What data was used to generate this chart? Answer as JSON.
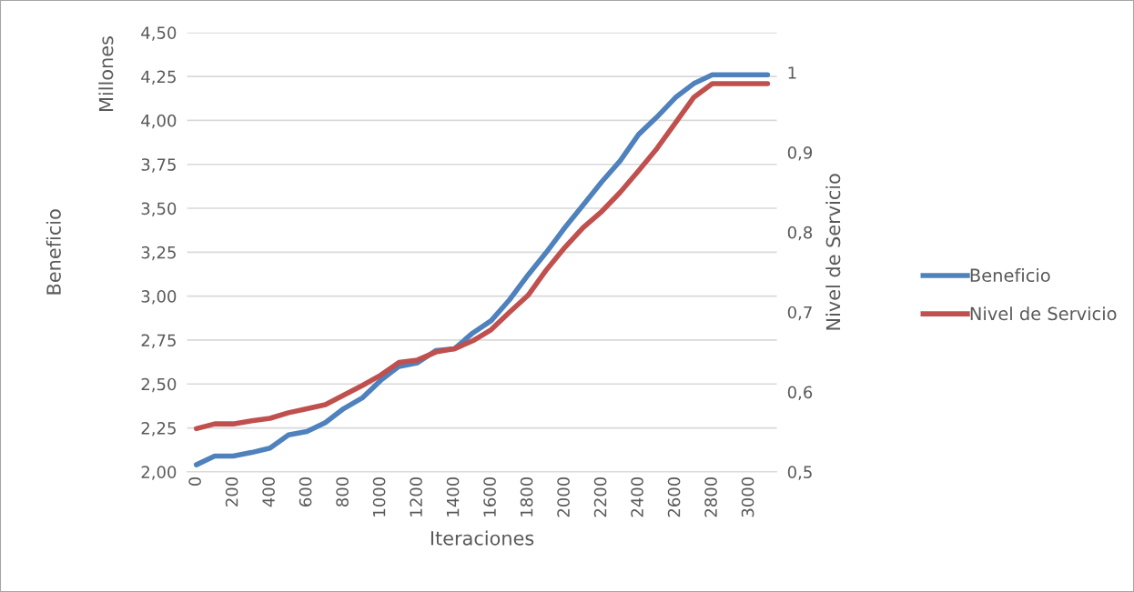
{
  "chart_data": {
    "type": "line",
    "xlabel": "Iteraciones",
    "ylabel": "Beneficio",
    "y2label": "Nivel de Servicio",
    "annotations": [
      "Millones"
    ],
    "categories": [
      "0",
      null,
      "200",
      null,
      "400",
      null,
      "600",
      null,
      "800",
      null,
      "1000",
      null,
      "1200",
      null,
      "1400",
      null,
      "1600",
      null,
      "1800",
      null,
      "2000",
      null,
      "2200",
      null,
      "2400",
      null,
      "2600",
      null,
      "2800",
      null,
      "3000",
      null
    ],
    "series": [
      {
        "name": "Beneficio",
        "color": "#4f81bd",
        "values": [
          2.04,
          2.09,
          2.09,
          2.11,
          2.135,
          2.21,
          2.23,
          2.28,
          2.36,
          2.42,
          2.52,
          2.6,
          2.62,
          2.69,
          2.7,
          2.79,
          2.86,
          2.98,
          3.12,
          3.25,
          3.39,
          3.52,
          3.65,
          3.77,
          3.92,
          4.02,
          4.13,
          4.21,
          4.26,
          4.26,
          4.26,
          4.26
        ]
      },
      {
        "name": "Nivel de Servicio",
        "color": "#c0504d",
        "axis": "y2",
        "values": [
          0.554,
          0.56,
          0.56,
          0.564,
          0.567,
          0.574,
          0.579,
          0.584,
          0.596,
          0.608,
          0.621,
          0.637,
          0.64,
          0.65,
          0.654,
          0.664,
          0.678,
          0.7,
          0.721,
          0.753,
          0.781,
          0.806,
          0.826,
          0.85,
          0.877,
          0.905,
          0.937,
          0.969,
          0.986,
          0.986,
          0.986,
          0.986
        ]
      }
    ],
    "ylim": [
      2.0,
      4.5
    ],
    "yticks": [
      {
        "value": 2.0,
        "label": "2,00"
      },
      {
        "value": 2.25,
        "label": "2,25"
      },
      {
        "value": 2.5,
        "label": "2,50"
      },
      {
        "value": 2.75,
        "label": "2,75"
      },
      {
        "value": 3.0,
        "label": "3,00"
      },
      {
        "value": 3.25,
        "label": "3,25"
      },
      {
        "value": 3.5,
        "label": "3,50"
      },
      {
        "value": 3.75,
        "label": "3,75"
      },
      {
        "value": 4.0,
        "label": "4,00"
      },
      {
        "value": 4.25,
        "label": "4,25"
      },
      {
        "value": 4.5,
        "label": "4,50"
      }
    ],
    "y2lim": [
      0.5,
      1.05
    ],
    "y2ticks": [
      {
        "value": 0.5,
        "label": "0,5"
      },
      {
        "value": 0.6,
        "label": "0,6"
      },
      {
        "value": 0.7,
        "label": "0,7"
      },
      {
        "value": 0.8,
        "label": "0,8"
      },
      {
        "value": 0.9,
        "label": "0,9"
      },
      1
    ],
    "grid": "y",
    "legend": "right",
    "marker": "none",
    "line_style": "solid"
  }
}
